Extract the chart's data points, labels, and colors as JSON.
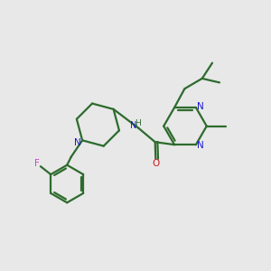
{
  "bg": "#e8e8e8",
  "bc": "#2d6b2d",
  "nc": "#1a1acc",
  "oc": "#cc1a1a",
  "fc": "#cc44cc",
  "lw": 1.6,
  "figsize": [
    3.0,
    3.0
  ],
  "dpi": 100,
  "xlim": [
    0,
    10
  ],
  "ylim": [
    0,
    10
  ]
}
